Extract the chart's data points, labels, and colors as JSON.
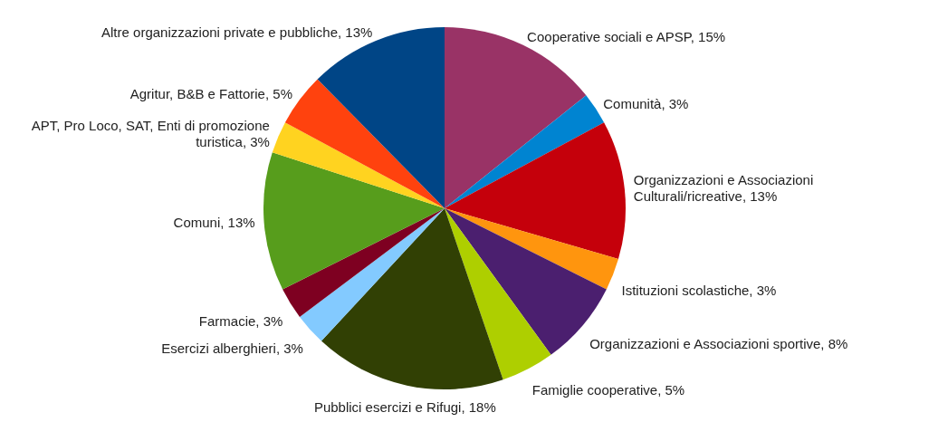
{
  "chart_data": {
    "type": "pie",
    "categories": [
      "Cooperative sociali e APSP",
      "Comunità",
      "Organizzazioni e Associazioni Culturali/ricreative",
      "Istituzioni scolastiche",
      "Organizzazioni e Associazioni sportive",
      "Famiglie cooperative",
      "Pubblici esercizi e Rifugi",
      "Esercizi alberghieri",
      "Farmacie",
      "Comuni",
      "APT, Pro Loco, SAT, Enti di promozione turistica",
      "Agritur, B&B e Fattorie",
      "Altre organizzazioni private e pubbliche"
    ],
    "values": [
      15,
      3,
      13,
      3,
      8,
      5,
      18,
      3,
      3,
      13,
      3,
      5,
      13
    ],
    "value_labels": [
      "15%",
      "3%",
      "13%",
      "3%",
      "8%",
      "5%",
      "18%",
      "3%",
      "3%",
      "13%",
      "3%",
      "5%",
      "13%"
    ],
    "colors": [
      "#993366",
      "#0084d1",
      "#c5000b",
      "#ff950e",
      "#4b1f6f",
      "#aecf00",
      "#314004",
      "#83caff",
      "#7e0021",
      "#579d1c",
      "#ffd320",
      "#ff420e",
      "#004586"
    ],
    "legend": false
  }
}
